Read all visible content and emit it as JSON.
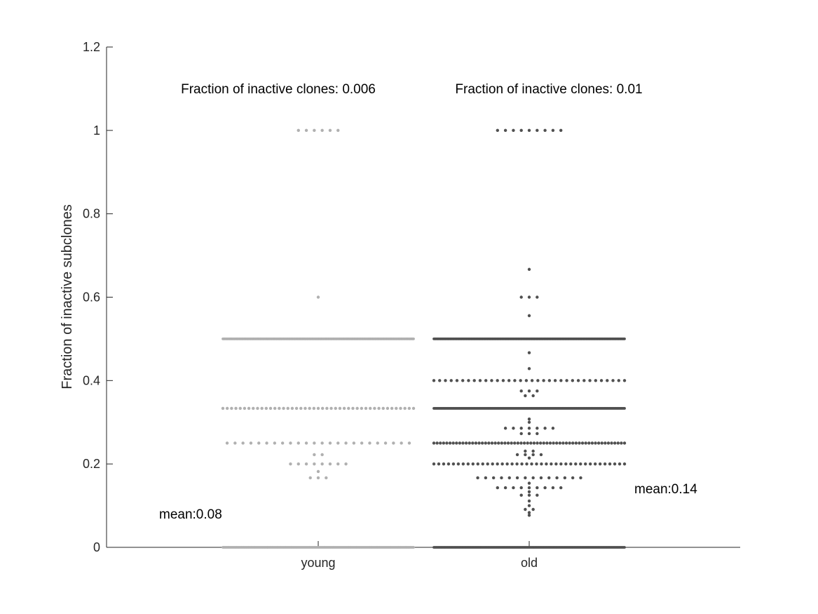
{
  "chart_data": {
    "type": "scatter",
    "ylabel": "Fraction of inactive subclones",
    "xlabel": "",
    "ylim": [
      0,
      1.2
    ],
    "yticks": [
      "0",
      "0.2",
      "0.4",
      "0.6",
      "0.8",
      "1",
      "1.2"
    ],
    "categories": [
      "young",
      "old"
    ],
    "grid": false,
    "annotations": {
      "young_fraction": "Fraction of inactive clones: 0.006",
      "old_fraction": "Fraction of inactive clones: 0.01",
      "young_mean": "mean:0.08",
      "old_mean": "mean:0.14"
    },
    "series": [
      {
        "category": "young",
        "color": "#b0b0b0",
        "levels": [
          {
            "y": 0,
            "count": 200
          },
          {
            "y": 0.1667,
            "count": 3
          },
          {
            "y": 0.1818,
            "count": 1
          },
          {
            "y": 0.2,
            "count": 8
          },
          {
            "y": 0.2222,
            "count": 2
          },
          {
            "y": 0.25,
            "count": 24
          },
          {
            "y": 0.3333,
            "count": 45
          },
          {
            "y": 0.5,
            "count": 200
          },
          {
            "y": 0.6,
            "count": 1
          },
          {
            "y": 1.0,
            "count": 6
          }
        ]
      },
      {
        "category": "old",
        "color": "#505050",
        "levels": [
          {
            "y": 0,
            "count": 200
          },
          {
            "y": 0.0769,
            "count": 1
          },
          {
            "y": 0.0833,
            "count": 1
          },
          {
            "y": 0.0909,
            "count": 2
          },
          {
            "y": 0.1,
            "count": 1
          },
          {
            "y": 0.1111,
            "count": 1
          },
          {
            "y": 0.125,
            "count": 3
          },
          {
            "y": 0.1333,
            "count": 1
          },
          {
            "y": 0.1429,
            "count": 9
          },
          {
            "y": 0.1538,
            "count": 1
          },
          {
            "y": 0.1667,
            "count": 14
          },
          {
            "y": 0.2,
            "count": 40
          },
          {
            "y": 0.2143,
            "count": 1
          },
          {
            "y": 0.2222,
            "count": 4
          },
          {
            "y": 0.2308,
            "count": 2
          },
          {
            "y": 0.25,
            "count": 60
          },
          {
            "y": 0.2727,
            "count": 3
          },
          {
            "y": 0.2857,
            "count": 7
          },
          {
            "y": 0.3,
            "count": 1
          },
          {
            "y": 0.3077,
            "count": 1
          },
          {
            "y": 0.3333,
            "count": 200
          },
          {
            "y": 0.3636,
            "count": 2
          },
          {
            "y": 0.375,
            "count": 3
          },
          {
            "y": 0.4,
            "count": 34
          },
          {
            "y": 0.4286,
            "count": 1
          },
          {
            "y": 0.4667,
            "count": 1
          },
          {
            "y": 0.5,
            "count": 200
          },
          {
            "y": 0.5556,
            "count": 1
          },
          {
            "y": 0.6,
            "count": 3
          },
          {
            "y": 0.6667,
            "count": 1
          },
          {
            "y": 1.0,
            "count": 9
          }
        ]
      }
    ]
  }
}
